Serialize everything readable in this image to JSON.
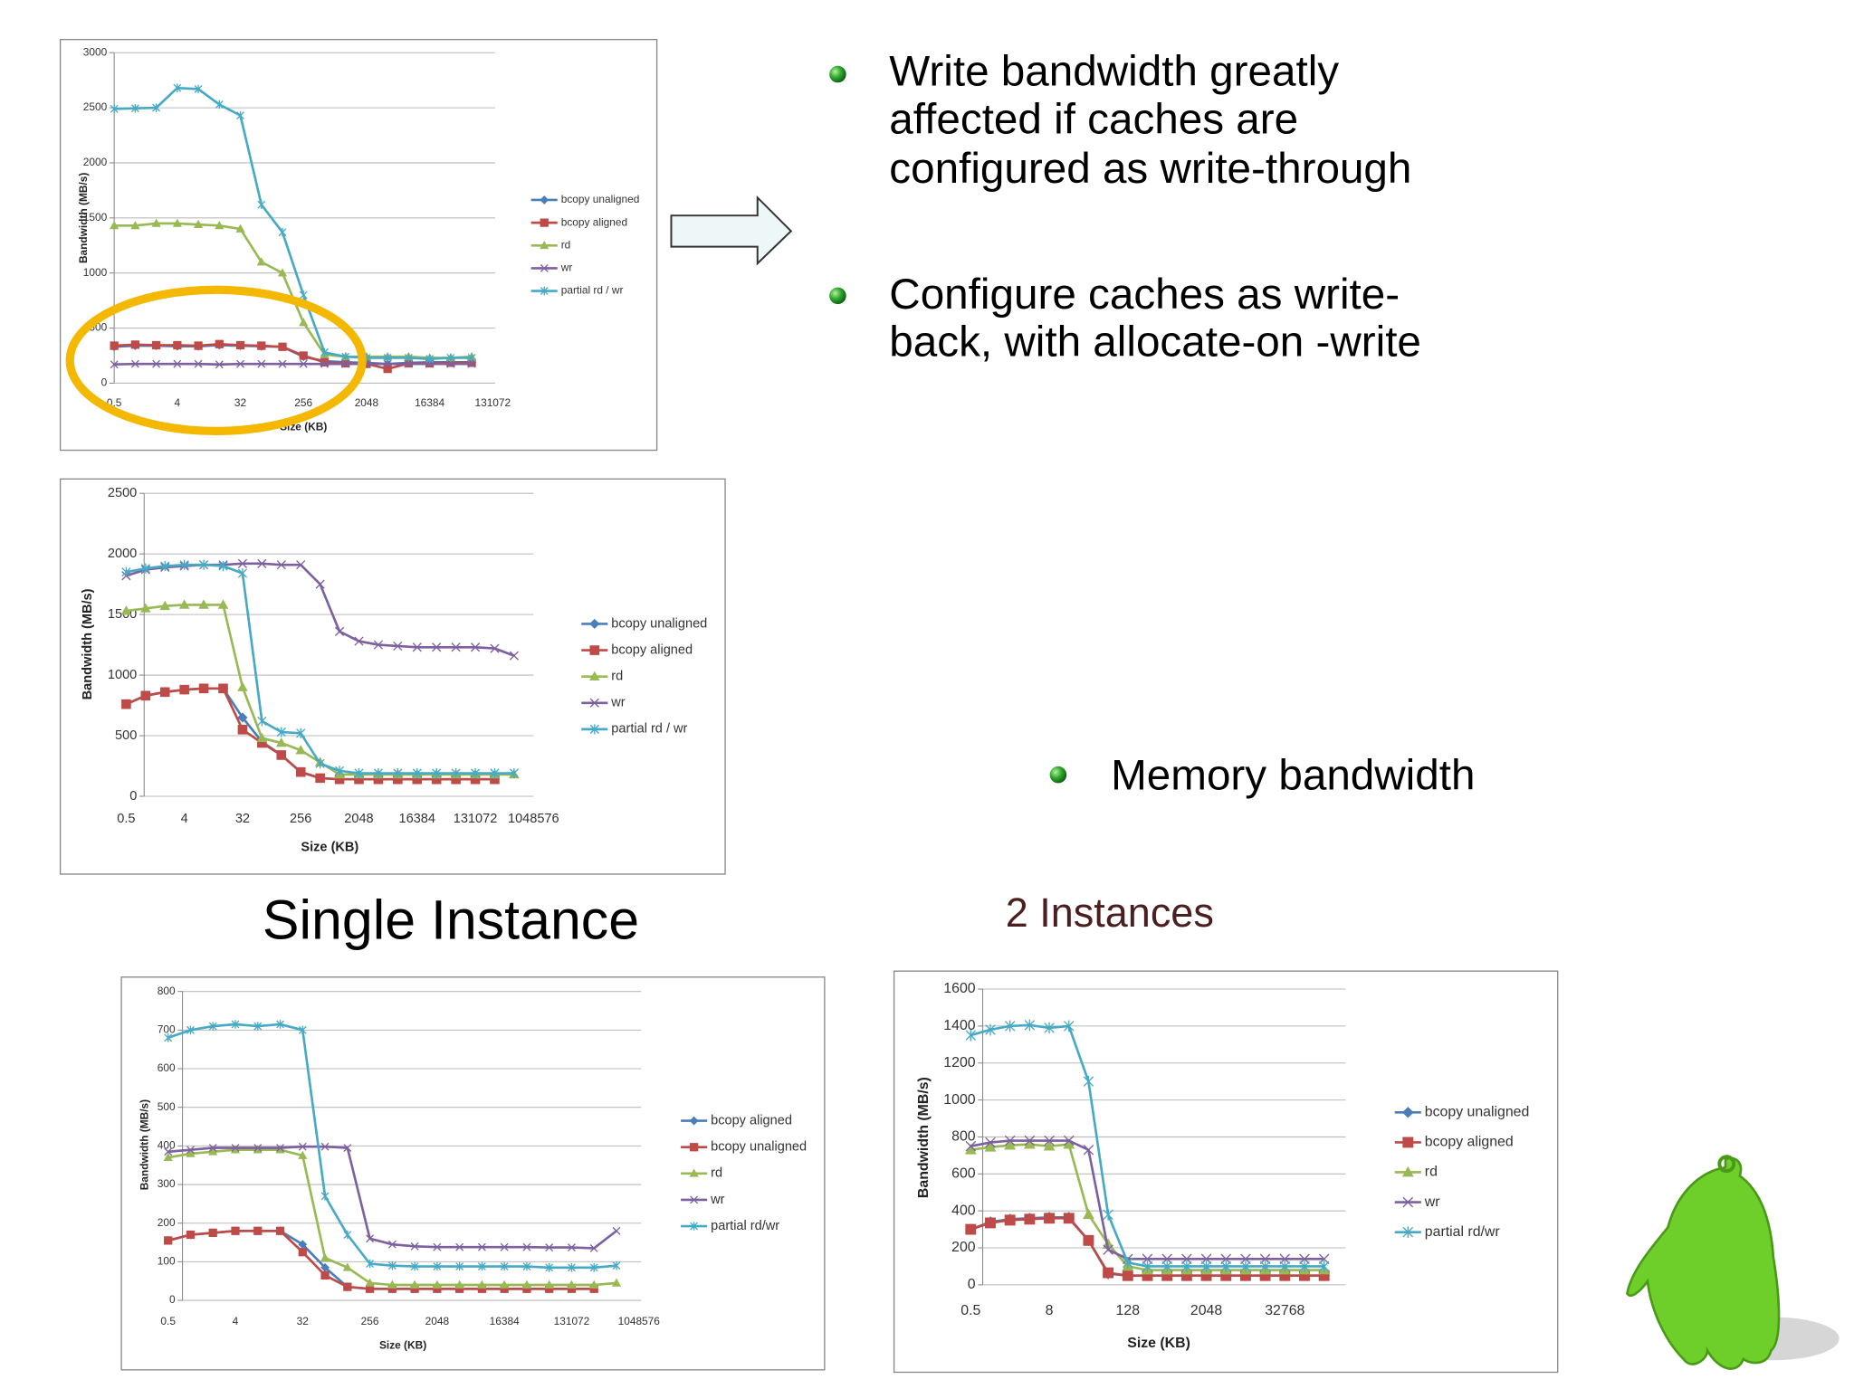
{
  "bullets": [
    {
      "lines": [
        "Write bandwidth greatly",
        "affected if caches are",
        "configured as write-through"
      ]
    },
    {
      "lines": [
        "Configure caches as write-",
        "back, with allocate-on -write"
      ]
    },
    {
      "lines": [
        "Memory bandwidth"
      ]
    }
  ],
  "captions": [
    "Single Instance",
    "2 Instances"
  ],
  "chart_data": [
    {
      "type": "line",
      "ylabel": "Bandwidth (MB/s)",
      "xlabel": "Size (KB)",
      "categories": [
        "0.5",
        null,
        null,
        "4",
        null,
        null,
        "32",
        null,
        null,
        "256",
        null,
        null,
        "2048",
        null,
        null,
        "16384",
        null,
        null,
        "131072"
      ],
      "ylim": [
        0,
        3000
      ],
      "yticks": [
        0,
        500,
        1000,
        1500,
        2000,
        2500,
        3000
      ],
      "grid": true,
      "series": [
        {
          "name": "bcopy unaligned",
          "color": "#4a7ebb",
          "marker": "diamond",
          "values": [
            330,
            340,
            340,
            335,
            335,
            345,
            340,
            335,
            330,
            240,
            200,
            190,
            185,
            175,
            185,
            190,
            190,
            190,
            null
          ]
        },
        {
          "name": "bcopy aligned",
          "color": "#be4b48",
          "marker": "square",
          "values": [
            340,
            350,
            345,
            345,
            340,
            355,
            345,
            340,
            330,
            250,
            190,
            180,
            175,
            130,
            180,
            180,
            185,
            185,
            null
          ]
        },
        {
          "name": "rd",
          "color": "#98b954",
          "marker": "triangle",
          "values": [
            1430,
            1430,
            1450,
            1450,
            1440,
            1430,
            1400,
            1100,
            1000,
            550,
            260,
            240,
            240,
            240,
            240,
            230,
            230,
            240,
            null
          ]
        },
        {
          "name": "wr",
          "color": "#7d60a0",
          "marker": "x",
          "values": [
            170,
            175,
            175,
            175,
            175,
            170,
            175,
            175,
            175,
            175,
            175,
            175,
            175,
            175,
            175,
            175,
            175,
            175,
            null
          ]
        },
        {
          "name": "partial rd / wr",
          "color": "#46aac5",
          "marker": "star",
          "values": [
            2490,
            2495,
            2500,
            2680,
            2670,
            2530,
            2430,
            1620,
            1370,
            800,
            280,
            240,
            230,
            230,
            230,
            220,
            230,
            230,
            null
          ]
        }
      ]
    },
    {
      "type": "line",
      "ylabel": "Bandwidth (MB/s)",
      "xlabel": "Size (KB)",
      "categories": [
        "0.5",
        null,
        null,
        "4",
        null,
        null,
        "32",
        null,
        null,
        "256",
        null,
        null,
        "2048",
        null,
        null,
        "16384",
        null,
        null,
        "131072",
        null,
        null,
        "1048576"
      ],
      "ylim": [
        0,
        2500
      ],
      "yticks": [
        0,
        500,
        1000,
        1500,
        2000,
        2500
      ],
      "grid": true,
      "series": [
        {
          "name": "bcopy unaligned",
          "color": "#4a7ebb",
          "marker": "diamond",
          "values": [
            760,
            830,
            860,
            880,
            890,
            890,
            650,
            450,
            340,
            200,
            150,
            140,
            140,
            140,
            140,
            140,
            140,
            140,
            140,
            140,
            null,
            null
          ]
        },
        {
          "name": "bcopy aligned",
          "color": "#be4b48",
          "marker": "square",
          "values": [
            760,
            830,
            860,
            880,
            890,
            890,
            550,
            440,
            340,
            200,
            150,
            140,
            140,
            140,
            140,
            140,
            140,
            140,
            140,
            140,
            null,
            null
          ]
        },
        {
          "name": "rd",
          "color": "#98b954",
          "marker": "triangle",
          "values": [
            1530,
            1550,
            1570,
            1580,
            1580,
            1580,
            900,
            480,
            440,
            380,
            280,
            180,
            180,
            180,
            180,
            180,
            180,
            180,
            180,
            180,
            180,
            null
          ]
        },
        {
          "name": "wr",
          "color": "#7d60a0",
          "marker": "x",
          "values": [
            1820,
            1870,
            1890,
            1900,
            1910,
            1910,
            1920,
            1920,
            1910,
            1910,
            1750,
            1360,
            1280,
            1250,
            1240,
            1230,
            1230,
            1230,
            1230,
            1220,
            1160,
            null
          ]
        },
        {
          "name": "partial rd / wr",
          "color": "#46aac5",
          "marker": "star",
          "values": [
            1850,
            1880,
            1900,
            1910,
            1910,
            1900,
            1840,
            620,
            530,
            520,
            270,
            210,
            190,
            190,
            190,
            190,
            190,
            190,
            190,
            190,
            190,
            null
          ]
        }
      ]
    },
    {
      "type": "line",
      "ylabel": "Bandwidth (MB/s)",
      "xlabel": "Size (KB)",
      "categories": [
        "0.5",
        null,
        null,
        "4",
        null,
        null,
        "32",
        null,
        null,
        "256",
        null,
        null,
        "2048",
        null,
        null,
        "16384",
        null,
        null,
        "131072",
        null,
        null,
        "1048576"
      ],
      "ylim": [
        0,
        800
      ],
      "yticks": [
        0,
        100,
        200,
        300,
        400,
        500,
        600,
        700,
        800
      ],
      "grid": true,
      "series": [
        {
          "name": "bcopy aligned",
          "color": "#4a7ebb",
          "marker": "diamond",
          "values": [
            155,
            170,
            175,
            180,
            180,
            180,
            145,
            85,
            35,
            30,
            30,
            30,
            30,
            30,
            30,
            30,
            30,
            30,
            30,
            30,
            null,
            null
          ]
        },
        {
          "name": "bcopy unaligned",
          "color": "#be4b48",
          "marker": "square",
          "values": [
            155,
            170,
            175,
            180,
            180,
            180,
            125,
            65,
            35,
            30,
            30,
            30,
            30,
            30,
            30,
            30,
            30,
            30,
            30,
            30,
            null,
            null
          ]
        },
        {
          "name": "rd",
          "color": "#98b954",
          "marker": "triangle",
          "values": [
            370,
            380,
            385,
            390,
            390,
            390,
            375,
            110,
            85,
            45,
            40,
            40,
            40,
            40,
            40,
            40,
            40,
            40,
            40,
            40,
            45,
            null
          ]
        },
        {
          "name": "wr",
          "color": "#7d60a0",
          "marker": "x",
          "values": [
            385,
            390,
            395,
            395,
            395,
            395,
            398,
            398,
            395,
            160,
            145,
            140,
            138,
            138,
            138,
            138,
            138,
            137,
            137,
            135,
            180,
            null
          ]
        },
        {
          "name": "partial rd/wr",
          "color": "#46aac5",
          "marker": "star",
          "values": [
            680,
            700,
            710,
            715,
            710,
            715,
            700,
            270,
            170,
            95,
            90,
            88,
            88,
            88,
            88,
            88,
            88,
            85,
            85,
            85,
            90,
            null
          ]
        }
      ]
    },
    {
      "type": "line",
      "ylabel": "Bandwidth (MB/s)",
      "xlabel": "Size (KB)",
      "categories": [
        "0.5",
        null,
        null,
        null,
        "8",
        null,
        null,
        null,
        "128",
        null,
        null,
        null,
        "2048",
        null,
        null,
        null,
        "32768",
        null,
        null
      ],
      "ylim": [
        0,
        1600
      ],
      "yticks": [
        0,
        200,
        400,
        600,
        800,
        1000,
        1200,
        1400,
        1600
      ],
      "grid": true,
      "series": [
        {
          "name": "bcopy unaligned",
          "color": "#4a7ebb",
          "marker": "diamond",
          "values": [
            300,
            340,
            355,
            360,
            365,
            365,
            240,
            60,
            50,
            50,
            50,
            50,
            50,
            50,
            50,
            50,
            50,
            50,
            50
          ]
        },
        {
          "name": "bcopy aligned",
          "color": "#be4b48",
          "marker": "square",
          "values": [
            300,
            335,
            350,
            355,
            360,
            360,
            240,
            65,
            50,
            50,
            50,
            50,
            50,
            50,
            50,
            50,
            50,
            50,
            50
          ]
        },
        {
          "name": "rd",
          "color": "#98b954",
          "marker": "triangle",
          "values": [
            730,
            745,
            755,
            760,
            750,
            760,
            380,
            220,
            100,
            80,
            80,
            80,
            80,
            80,
            80,
            80,
            80,
            80,
            80
          ]
        },
        {
          "name": "wr",
          "color": "#7d60a0",
          "marker": "x",
          "values": [
            750,
            770,
            780,
            780,
            780,
            780,
            730,
            190,
            140,
            140,
            140,
            140,
            140,
            140,
            140,
            140,
            140,
            140,
            140
          ]
        },
        {
          "name": "partial rd/wr",
          "color": "#46aac5",
          "marker": "star",
          "values": [
            1350,
            1380,
            1400,
            1405,
            1390,
            1400,
            1100,
            380,
            120,
            100,
            100,
            100,
            100,
            100,
            100,
            100,
            100,
            100,
            100
          ]
        }
      ]
    }
  ]
}
